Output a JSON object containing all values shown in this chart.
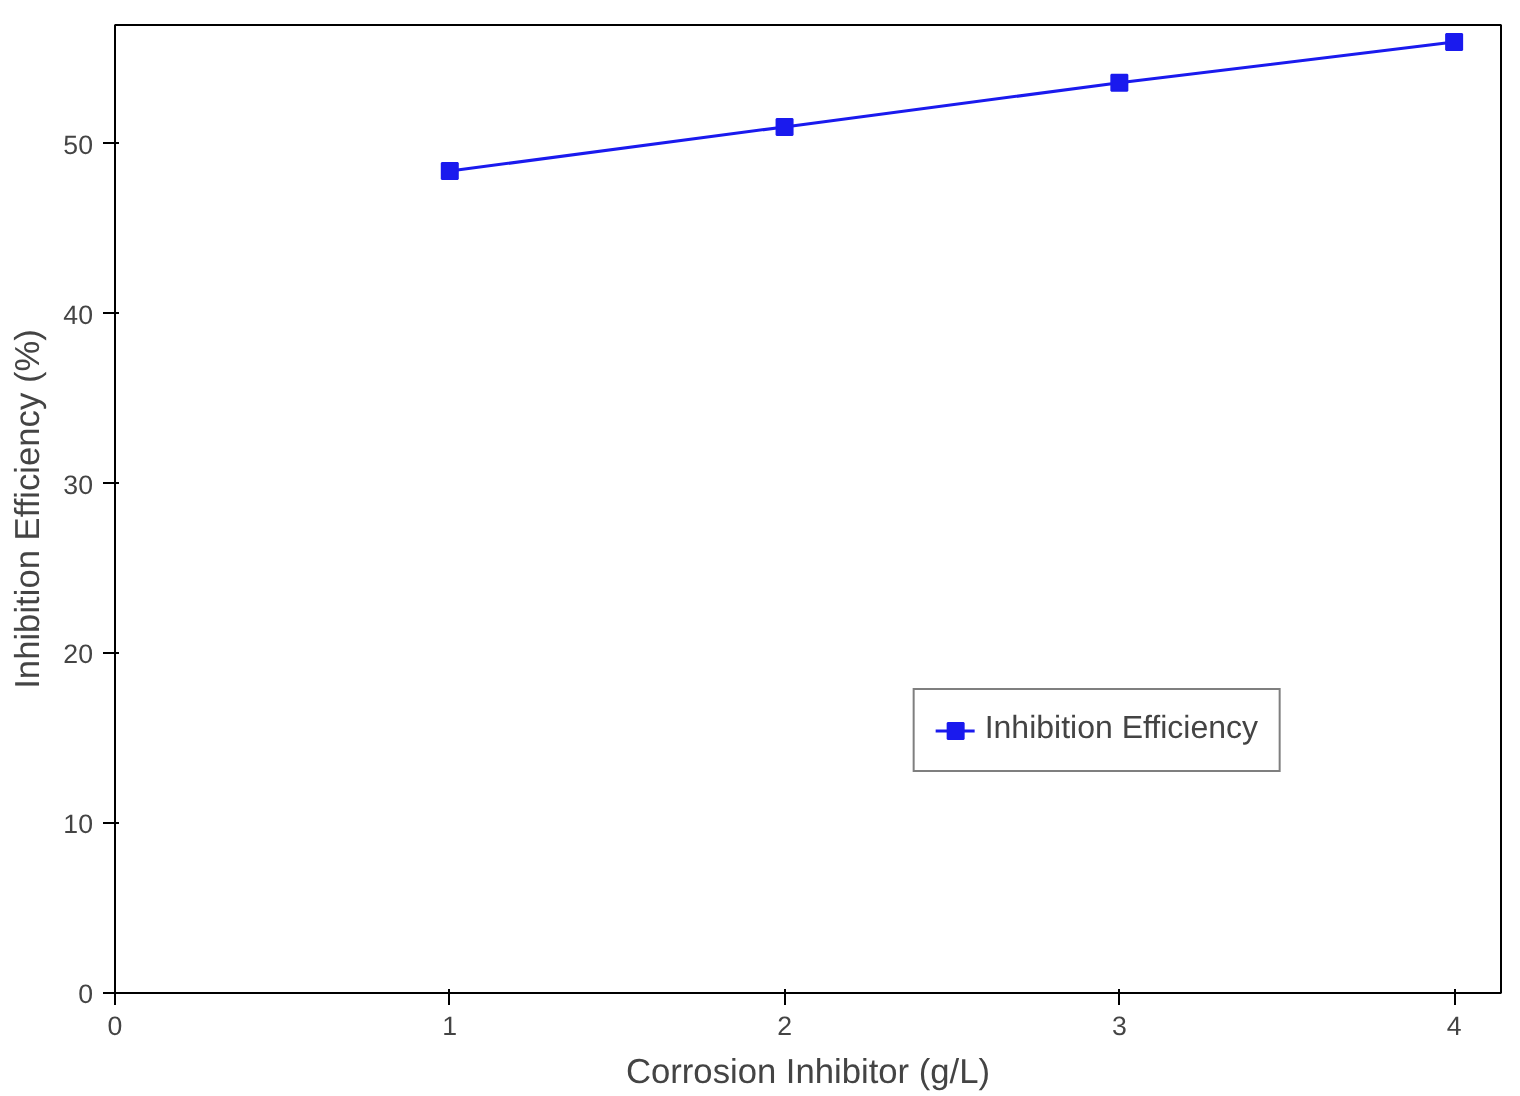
{
  "chart_data": {
    "type": "line",
    "xlabel": "Corrosion Inhibitor (g/L)",
    "ylabel": "Inhibition Efficiency (%)",
    "x": [
      1,
      2,
      3,
      4
    ],
    "series": [
      {
        "name": "Inhibition Efficiency",
        "color": "#1a1aee",
        "values": [
          48.4,
          51.0,
          53.6,
          56.0
        ]
      }
    ],
    "xlim": [
      0,
      4.14
    ],
    "ylim": [
      0,
      57
    ],
    "xticks": [
      0,
      1,
      2,
      3,
      4
    ],
    "yticks": [
      0,
      10,
      20,
      30,
      40,
      50
    ],
    "grid": false,
    "legend": "bottom right",
    "marker": "square",
    "line_style": "solid"
  }
}
